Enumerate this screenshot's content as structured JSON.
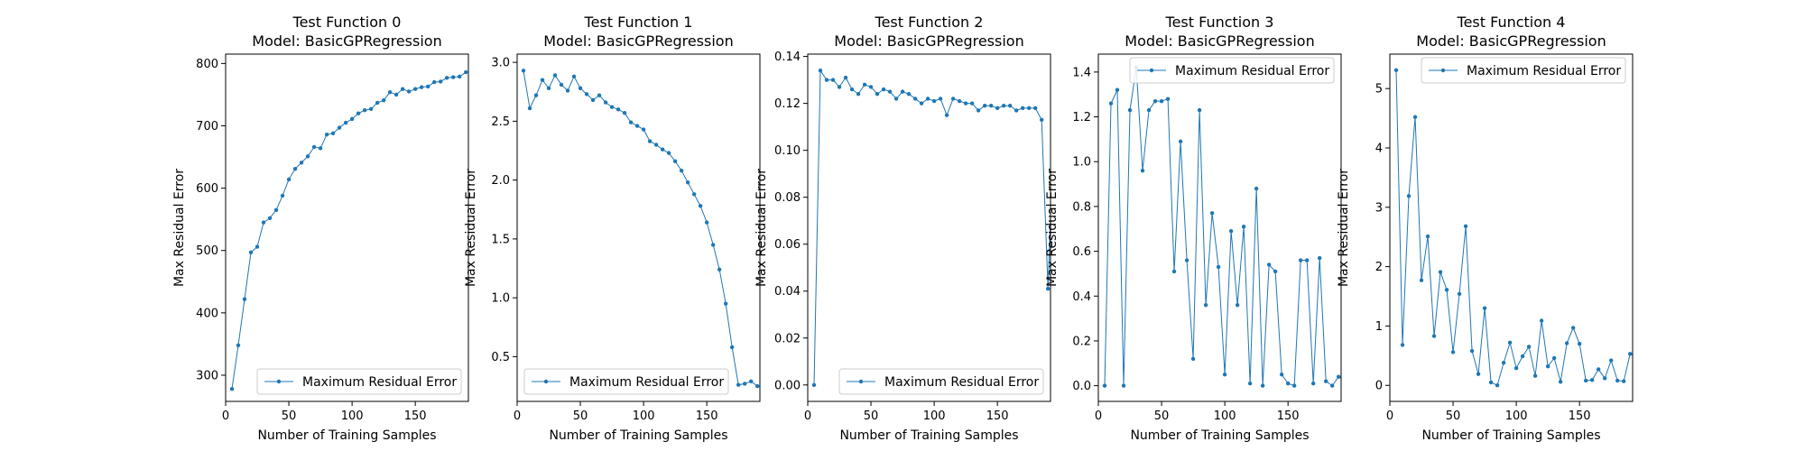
{
  "colors": {
    "line": "#1f77b4",
    "axis": "#000000",
    "legend_border": "#cccccc"
  },
  "chart_data": [
    {
      "type": "line",
      "title": [
        "Test Function 0",
        "Model: BasicGPRegression"
      ],
      "xlabel": "Number of Training Samples",
      "ylabel": "Max Residual Error",
      "xlim": [
        0,
        192
      ],
      "ylim": [
        258,
        815
      ],
      "xticks": [
        0,
        50,
        100,
        150
      ],
      "yticks": [
        300,
        400,
        500,
        600,
        700,
        800
      ],
      "ytick_labels": [
        "300",
        "400",
        "500",
        "600",
        "700",
        "800"
      ],
      "legend_position": "lower right",
      "grid": false,
      "series": [
        {
          "name": "Maximum Residual Error",
          "x": [
            5,
            10,
            15,
            20,
            25,
            30,
            35,
            40,
            45,
            50,
            55,
            60,
            65,
            70,
            75,
            80,
            85,
            90,
            95,
            100,
            105,
            110,
            115,
            120,
            125,
            130,
            135,
            140,
            145,
            150,
            155,
            160,
            165,
            170,
            175,
            180,
            185,
            190
          ],
          "y": [
            278,
            348,
            422,
            497,
            506,
            545,
            552,
            565,
            588,
            614,
            631,
            641,
            651,
            666,
            664,
            686,
            688,
            697,
            705,
            711,
            720,
            725,
            727,
            737,
            741,
            754,
            750,
            759,
            755,
            759,
            762,
            763,
            770,
            771,
            777,
            778,
            779,
            786
          ]
        }
      ]
    },
    {
      "type": "line",
      "title": [
        "Test Function 1",
        "Model: BasicGPRegression"
      ],
      "xlabel": "Number of Training Samples",
      "ylabel": "Max Residual Error",
      "xlim": [
        0,
        192
      ],
      "ylim": [
        0.12,
        3.07
      ],
      "xticks": [
        0,
        50,
        100,
        150
      ],
      "yticks": [
        0.5,
        1.0,
        1.5,
        2.0,
        2.5,
        3.0
      ],
      "ytick_labels": [
        "0.5",
        "1.0",
        "1.5",
        "2.0",
        "2.5",
        "3.0"
      ],
      "legend_position": "lower left",
      "grid": false,
      "series": [
        {
          "name": "Maximum Residual Error",
          "x": [
            5,
            10,
            15,
            20,
            25,
            30,
            35,
            40,
            45,
            50,
            55,
            60,
            65,
            70,
            75,
            80,
            85,
            90,
            95,
            100,
            105,
            110,
            115,
            120,
            125,
            130,
            135,
            140,
            145,
            150,
            155,
            160,
            165,
            170,
            175,
            180,
            185,
            190
          ],
          "y": [
            2.93,
            2.61,
            2.72,
            2.85,
            2.78,
            2.89,
            2.81,
            2.76,
            2.88,
            2.78,
            2.73,
            2.68,
            2.72,
            2.66,
            2.62,
            2.6,
            2.57,
            2.49,
            2.46,
            2.43,
            2.33,
            2.3,
            2.26,
            2.23,
            2.16,
            2.08,
            1.98,
            1.88,
            1.78,
            1.64,
            1.45,
            1.24,
            0.95,
            0.58,
            0.26,
            0.27,
            0.29,
            0.25
          ]
        }
      ]
    },
    {
      "type": "line",
      "title": [
        "Test Function 2",
        "Model: BasicGPRegression"
      ],
      "xlabel": "Number of Training Samples",
      "ylabel": "Max Residual Error",
      "xlim": [
        0,
        192
      ],
      "ylim": [
        -0.007,
        0.141
      ],
      "xticks": [
        0,
        50,
        100,
        150
      ],
      "yticks": [
        0.0,
        0.02,
        0.04,
        0.06,
        0.08,
        0.1,
        0.12,
        0.14
      ],
      "ytick_labels": [
        "0.00",
        "0.02",
        "0.04",
        "0.06",
        "0.08",
        "0.10",
        "0.12",
        "0.14"
      ],
      "legend_position": "lower right",
      "grid": false,
      "series": [
        {
          "name": "Maximum Residual Error",
          "x": [
            5,
            10,
            15,
            20,
            25,
            30,
            35,
            40,
            45,
            50,
            55,
            60,
            65,
            70,
            75,
            80,
            85,
            90,
            95,
            100,
            105,
            110,
            115,
            120,
            125,
            130,
            135,
            140,
            145,
            150,
            155,
            160,
            165,
            170,
            175,
            180,
            185,
            190,
            195
          ],
          "y": [
            0.0,
            0.134,
            0.13,
            0.13,
            0.127,
            0.131,
            0.126,
            0.124,
            0.128,
            0.127,
            0.124,
            0.126,
            0.125,
            0.122,
            0.125,
            0.124,
            0.122,
            0.12,
            0.122,
            0.121,
            0.122,
            0.115,
            0.122,
            0.121,
            0.12,
            0.12,
            0.117,
            0.119,
            0.119,
            0.118,
            0.119,
            0.119,
            0.117,
            0.118,
            0.118,
            0.118,
            0.113,
            0.041,
            0.117
          ]
        }
      ]
    },
    {
      "type": "line",
      "title": [
        "Test Function 3",
        "Model: BasicGPRegression"
      ],
      "xlabel": "Number of Training Samples",
      "ylabel": "Max Residual Error",
      "xlim": [
        0,
        192
      ],
      "ylim": [
        -0.07,
        1.48
      ],
      "xticks": [
        0,
        50,
        100,
        150
      ],
      "yticks": [
        0.0,
        0.2,
        0.4,
        0.6,
        0.8,
        1.0,
        1.2,
        1.4
      ],
      "ytick_labels": [
        "0.0",
        "0.2",
        "0.4",
        "0.6",
        "0.8",
        "1.0",
        "1.2",
        "1.4"
      ],
      "legend_position": "upper right",
      "grid": false,
      "series": [
        {
          "name": "Maximum Residual Error",
          "x": [
            5,
            10,
            15,
            20,
            25,
            30,
            35,
            40,
            45,
            50,
            55,
            60,
            65,
            70,
            75,
            80,
            85,
            90,
            95,
            100,
            105,
            110,
            115,
            120,
            125,
            130,
            135,
            140,
            145,
            150,
            155,
            160,
            165,
            170,
            175,
            180,
            185,
            190,
            195
          ],
          "y": [
            0.0,
            1.26,
            1.32,
            0.0,
            1.23,
            1.42,
            0.96,
            1.23,
            1.27,
            1.27,
            1.28,
            0.51,
            1.09,
            0.56,
            0.12,
            1.23,
            0.36,
            0.77,
            0.53,
            0.05,
            0.69,
            0.36,
            0.71,
            0.01,
            0.88,
            0.0,
            0.54,
            0.51,
            0.05,
            0.01,
            0.0,
            0.56,
            0.56,
            0.01,
            0.57,
            0.02,
            0.0,
            0.04,
            0.02
          ]
        }
      ]
    },
    {
      "type": "line",
      "title": [
        "Test Function 4",
        "Model: BasicGPRegression"
      ],
      "xlabel": "Number of Training Samples",
      "ylabel": "Max Residual Error",
      "xlim": [
        0,
        192
      ],
      "ylim": [
        -0.27,
        5.58
      ],
      "xticks": [
        0,
        50,
        100,
        150
      ],
      "yticks": [
        0,
        1,
        2,
        3,
        4,
        5
      ],
      "ytick_labels": [
        "0",
        "1",
        "2",
        "3",
        "4",
        "5"
      ],
      "legend_position": "upper right",
      "grid": false,
      "series": [
        {
          "name": "Maximum Residual Error",
          "x": [
            5,
            10,
            15,
            20,
            25,
            30,
            35,
            40,
            45,
            50,
            55,
            60,
            65,
            70,
            75,
            80,
            85,
            90,
            95,
            100,
            105,
            110,
            115,
            120,
            125,
            130,
            135,
            140,
            145,
            150,
            155,
            160,
            165,
            170,
            175,
            180,
            185,
            190,
            195
          ],
          "y": [
            5.31,
            0.68,
            3.19,
            4.52,
            1.77,
            2.51,
            0.83,
            1.91,
            1.61,
            0.56,
            1.54,
            2.68,
            0.58,
            0.19,
            1.3,
            0.05,
            0.0,
            0.38,
            0.72,
            0.29,
            0.49,
            0.65,
            0.16,
            1.09,
            0.32,
            0.46,
            0.06,
            0.71,
            0.97,
            0.7,
            0.08,
            0.09,
            0.27,
            0.12,
            0.42,
            0.08,
            0.07,
            0.53,
            0.47
          ]
        }
      ]
    }
  ]
}
